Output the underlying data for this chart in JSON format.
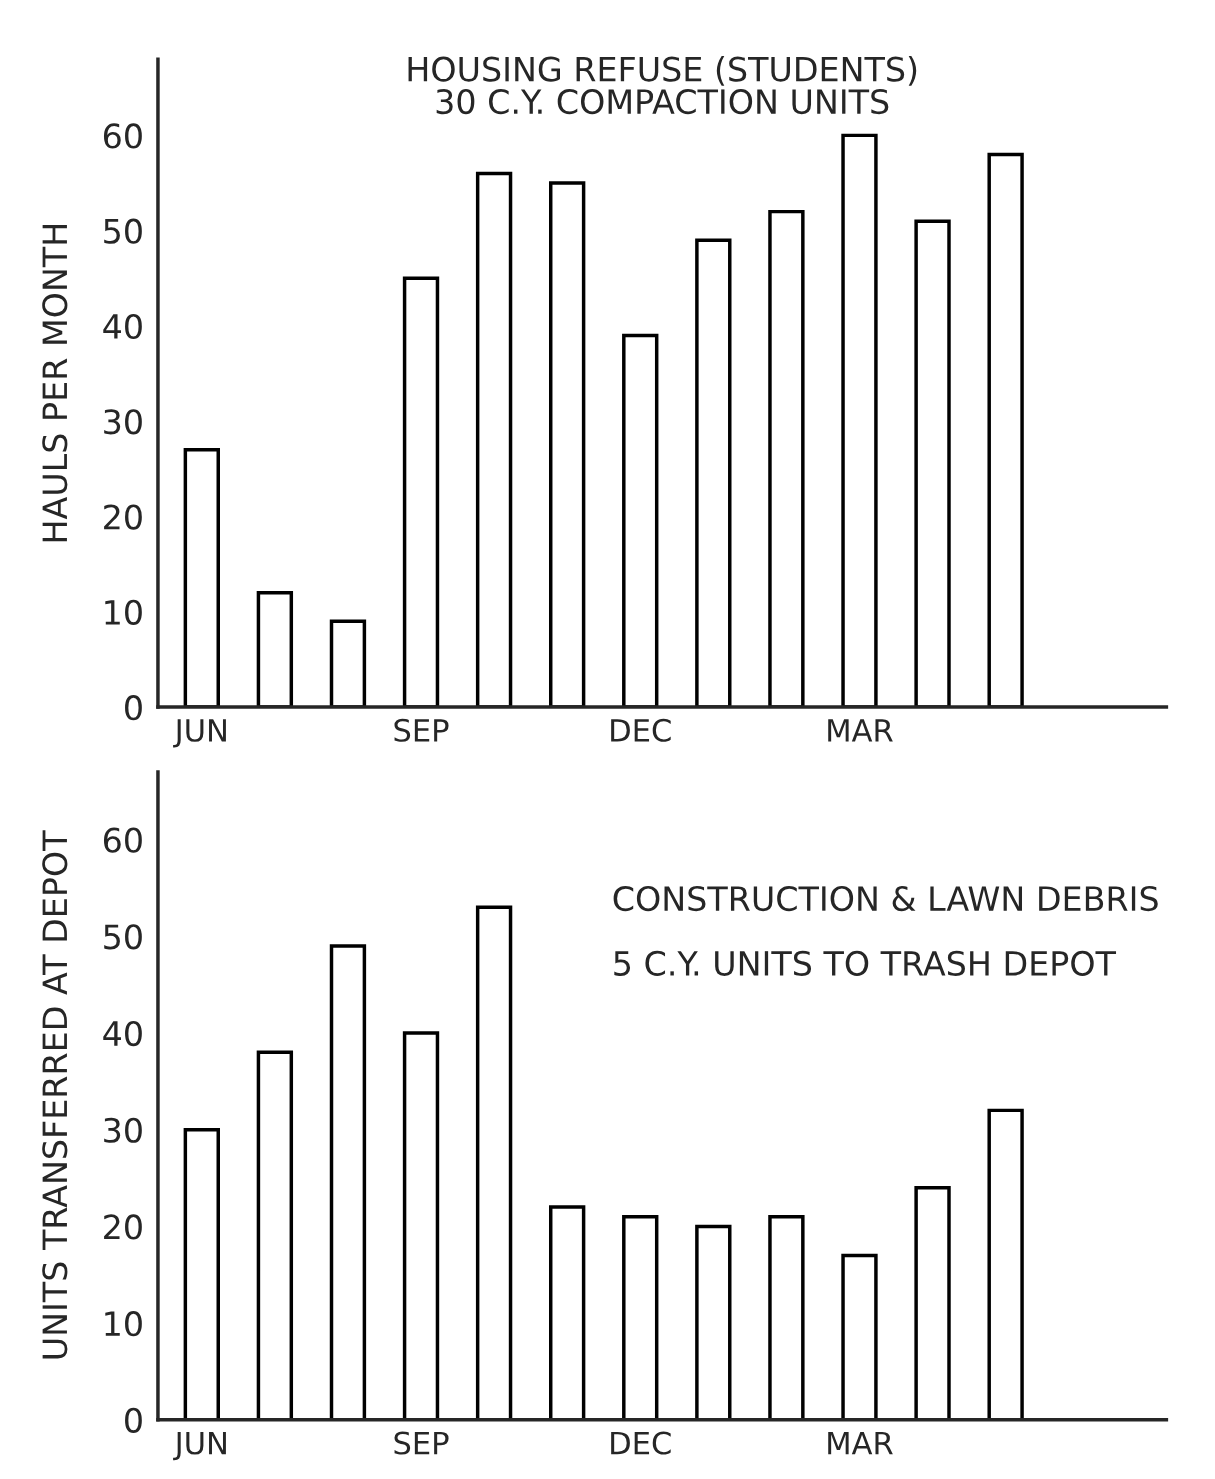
{
  "chart_data": [
    {
      "type": "bar",
      "title": "HOUSING REFUSE (STUDENTS)",
      "subtitle": "30 C.Y. COMPACTION UNITS",
      "ylabel": "HAULS PER MONTH",
      "categories": [
        "JUN",
        null,
        null,
        "SEP",
        null,
        null,
        "DEC",
        null,
        null,
        "MAR",
        null,
        null
      ],
      "series": [
        {
          "color": "#ffffff",
          "values": [
            27,
            12,
            9,
            45,
            56,
            55,
            39,
            49,
            52,
            60,
            51,
            58
          ]
        }
      ],
      "ylim": [
        0,
        68
      ],
      "yticks": [
        0,
        10,
        20,
        30,
        40,
        50,
        60
      ],
      "grid": false,
      "legend": false
    },
    {
      "type": "bar",
      "title": "CONSTRUCTION & LAWN DEBRIS",
      "subtitle": "5 C.Y. UNITS TO TRASH DEPOT",
      "ylabel": "UNITS TRANSFERRED AT DEPOT",
      "categories": [
        "JUN",
        null,
        null,
        "SEP",
        null,
        null,
        "DEC",
        null,
        null,
        "MAR",
        null,
        null
      ],
      "series": [
        {
          "color": "#ffffff",
          "values": [
            30,
            38,
            49,
            40,
            53,
            22,
            21,
            20,
            21,
            17,
            24,
            32
          ]
        }
      ],
      "ylim": [
        0,
        67
      ],
      "yticks": [
        0,
        10,
        20,
        30,
        40,
        50,
        60
      ],
      "grid": false,
      "legend": false
    }
  ]
}
